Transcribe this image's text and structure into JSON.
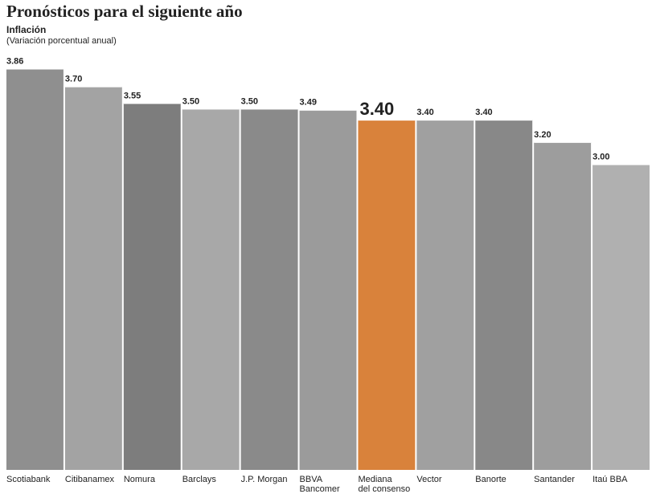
{
  "chart_data": {
    "type": "bar",
    "title": "Pronósticos para el siguiente año",
    "subtitle": "Inflación",
    "note": "(Variación porcentual anual)",
    "categories": [
      "Scotiabank",
      "Citibanamex",
      "Nomura",
      "Barclays",
      "J.P. Morgan",
      "BBVA\nBancomer",
      "Mediana\ndel consenso",
      "Vector",
      "Banorte",
      "Santander",
      "Itaú BBA"
    ],
    "values": [
      3.86,
      3.7,
      3.55,
      3.5,
      3.5,
      3.49,
      3.4,
      3.4,
      3.4,
      3.2,
      3.0
    ],
    "value_labels": [
      "3.86",
      "3.70",
      "3.55",
      "3.50",
      "3.50",
      "3.49",
      "3.40",
      "3.40",
      "3.40",
      "3.20",
      "3.00"
    ],
    "colors": [
      "#8f8f8f",
      "#a3a3a3",
      "#7d7d7d",
      "#a8a8a8",
      "#8a8a8a",
      "#9b9b9b",
      "#d9823b",
      "#a0a0a0",
      "#888888",
      "#9d9d9d",
      "#b0b0b0"
    ],
    "ylim": [
      0.25,
      3.9
    ]
  }
}
